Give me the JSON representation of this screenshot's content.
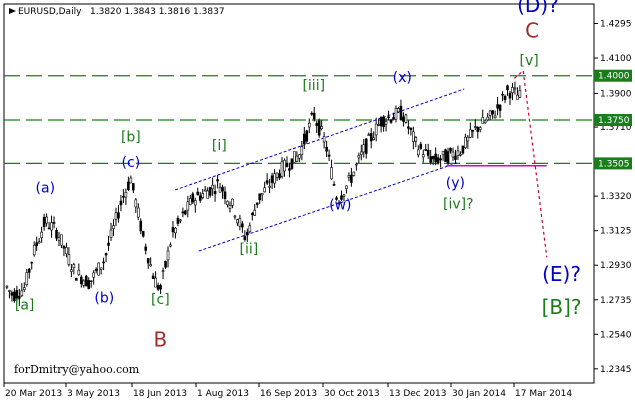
{
  "header": {
    "symbol": "EURUSD,Daily",
    "quotes": "1.3820 1.3843 1.3816 1.3837"
  },
  "watermark": "forDmitry@yahoo.com",
  "chart_data": {
    "type": "candlestick",
    "ylim": [
      1.2265,
      1.4405
    ],
    "y_ticks": [
      "1.4295",
      "1.4100",
      "1.3900",
      "1.3710",
      "1.3515",
      "1.3320",
      "1.3125",
      "1.2930",
      "1.2735",
      "1.2540",
      "1.2345"
    ],
    "x_ticks": [
      "20 Mar 2013",
      "3 May 2013",
      "18 Jun 2013",
      "1 Aug 2013",
      "16 Sep 2013",
      "30 Oct 2013",
      "13 Dec 2013",
      "30 Jan 2014",
      "17 Mar 2014"
    ],
    "levels": [
      {
        "value": 1.4,
        "label": "1.4000",
        "color": "#1a7d1a"
      },
      {
        "value": 1.375,
        "label": "1.3750",
        "color": "#1a7d1a"
      },
      {
        "value": 1.3505,
        "label": "1.3505",
        "color": "#1a7d1a"
      }
    ],
    "channel": {
      "upper": [
        [
          1.3355,
          0.29
        ],
        [
          1.3925,
          0.78
        ]
      ],
      "lower": [
        [
          1.301,
          0.33
        ],
        [
          1.351,
          0.77
        ]
      ],
      "color": "#0000cc"
    },
    "magenta_line": {
      "value": 1.3492,
      "x_from": 0.75,
      "x_to": 0.92,
      "color": "#d000d0"
    },
    "projection": {
      "from": [
        1.3985,
        0.865
      ],
      "peak": [
        1.4028,
        0.88
      ],
      "to": [
        1.2975,
        0.92
      ],
      "color": "#cc0033"
    },
    "wave_labels": [
      {
        "text": "[a]",
        "color": "#1a7d1a",
        "value": 1.268,
        "x": 0.035
      },
      {
        "text": "(a)",
        "color": "#0000cc",
        "value": 1.334,
        "x": 0.07
      },
      {
        "text": "(b)",
        "color": "#0000cc",
        "value": 1.272,
        "x": 0.17
      },
      {
        "text": "[b]",
        "color": "#1a7d1a",
        "value": 1.363,
        "x": 0.215
      },
      {
        "text": "(c)",
        "color": "#0000cc",
        "value": 1.3485,
        "x": 0.215
      },
      {
        "text": "[c]",
        "color": "#1a7d1a",
        "value": 1.271,
        "x": 0.265
      },
      {
        "text": "B",
        "color": "#a52a2a",
        "value": 1.247,
        "x": 0.265
      },
      {
        "text": "[i]",
        "color": "#1a7d1a",
        "value": 1.358,
        "x": 0.365
      },
      {
        "text": "[ii]",
        "color": "#1a7d1a",
        "value": 1.2995,
        "x": 0.415
      },
      {
        "text": "[iii]",
        "color": "#1a7d1a",
        "value": 1.392,
        "x": 0.525
      },
      {
        "text": "(w)",
        "color": "#0000cc",
        "value": 1.3245,
        "x": 0.57
      },
      {
        "text": "(x)",
        "color": "#0000cc",
        "value": 1.3965,
        "x": 0.675
      },
      {
        "text": "(y)",
        "color": "#0000cc",
        "value": 1.337,
        "x": 0.765
      },
      {
        "text": "[iv]?",
        "color": "#1a7d1a",
        "value": 1.325,
        "x": 0.77
      },
      {
        "text": "[v]",
        "color": "#1a7d1a",
        "value": 1.406,
        "x": 0.89
      },
      {
        "text": "(D)?",
        "color": "#0000cc",
        "value": 1.436,
        "x": 0.905
      },
      {
        "text": "C",
        "color": "#a52a2a",
        "value": 1.4215,
        "x": 0.895
      },
      {
        "text": "(E)?",
        "color": "#0000cc",
        "value": 1.284,
        "x": 0.945
      },
      {
        "text": "[B]?",
        "color": "#1a7d1a",
        "value": 1.2655,
        "x": 0.945
      }
    ]
  }
}
